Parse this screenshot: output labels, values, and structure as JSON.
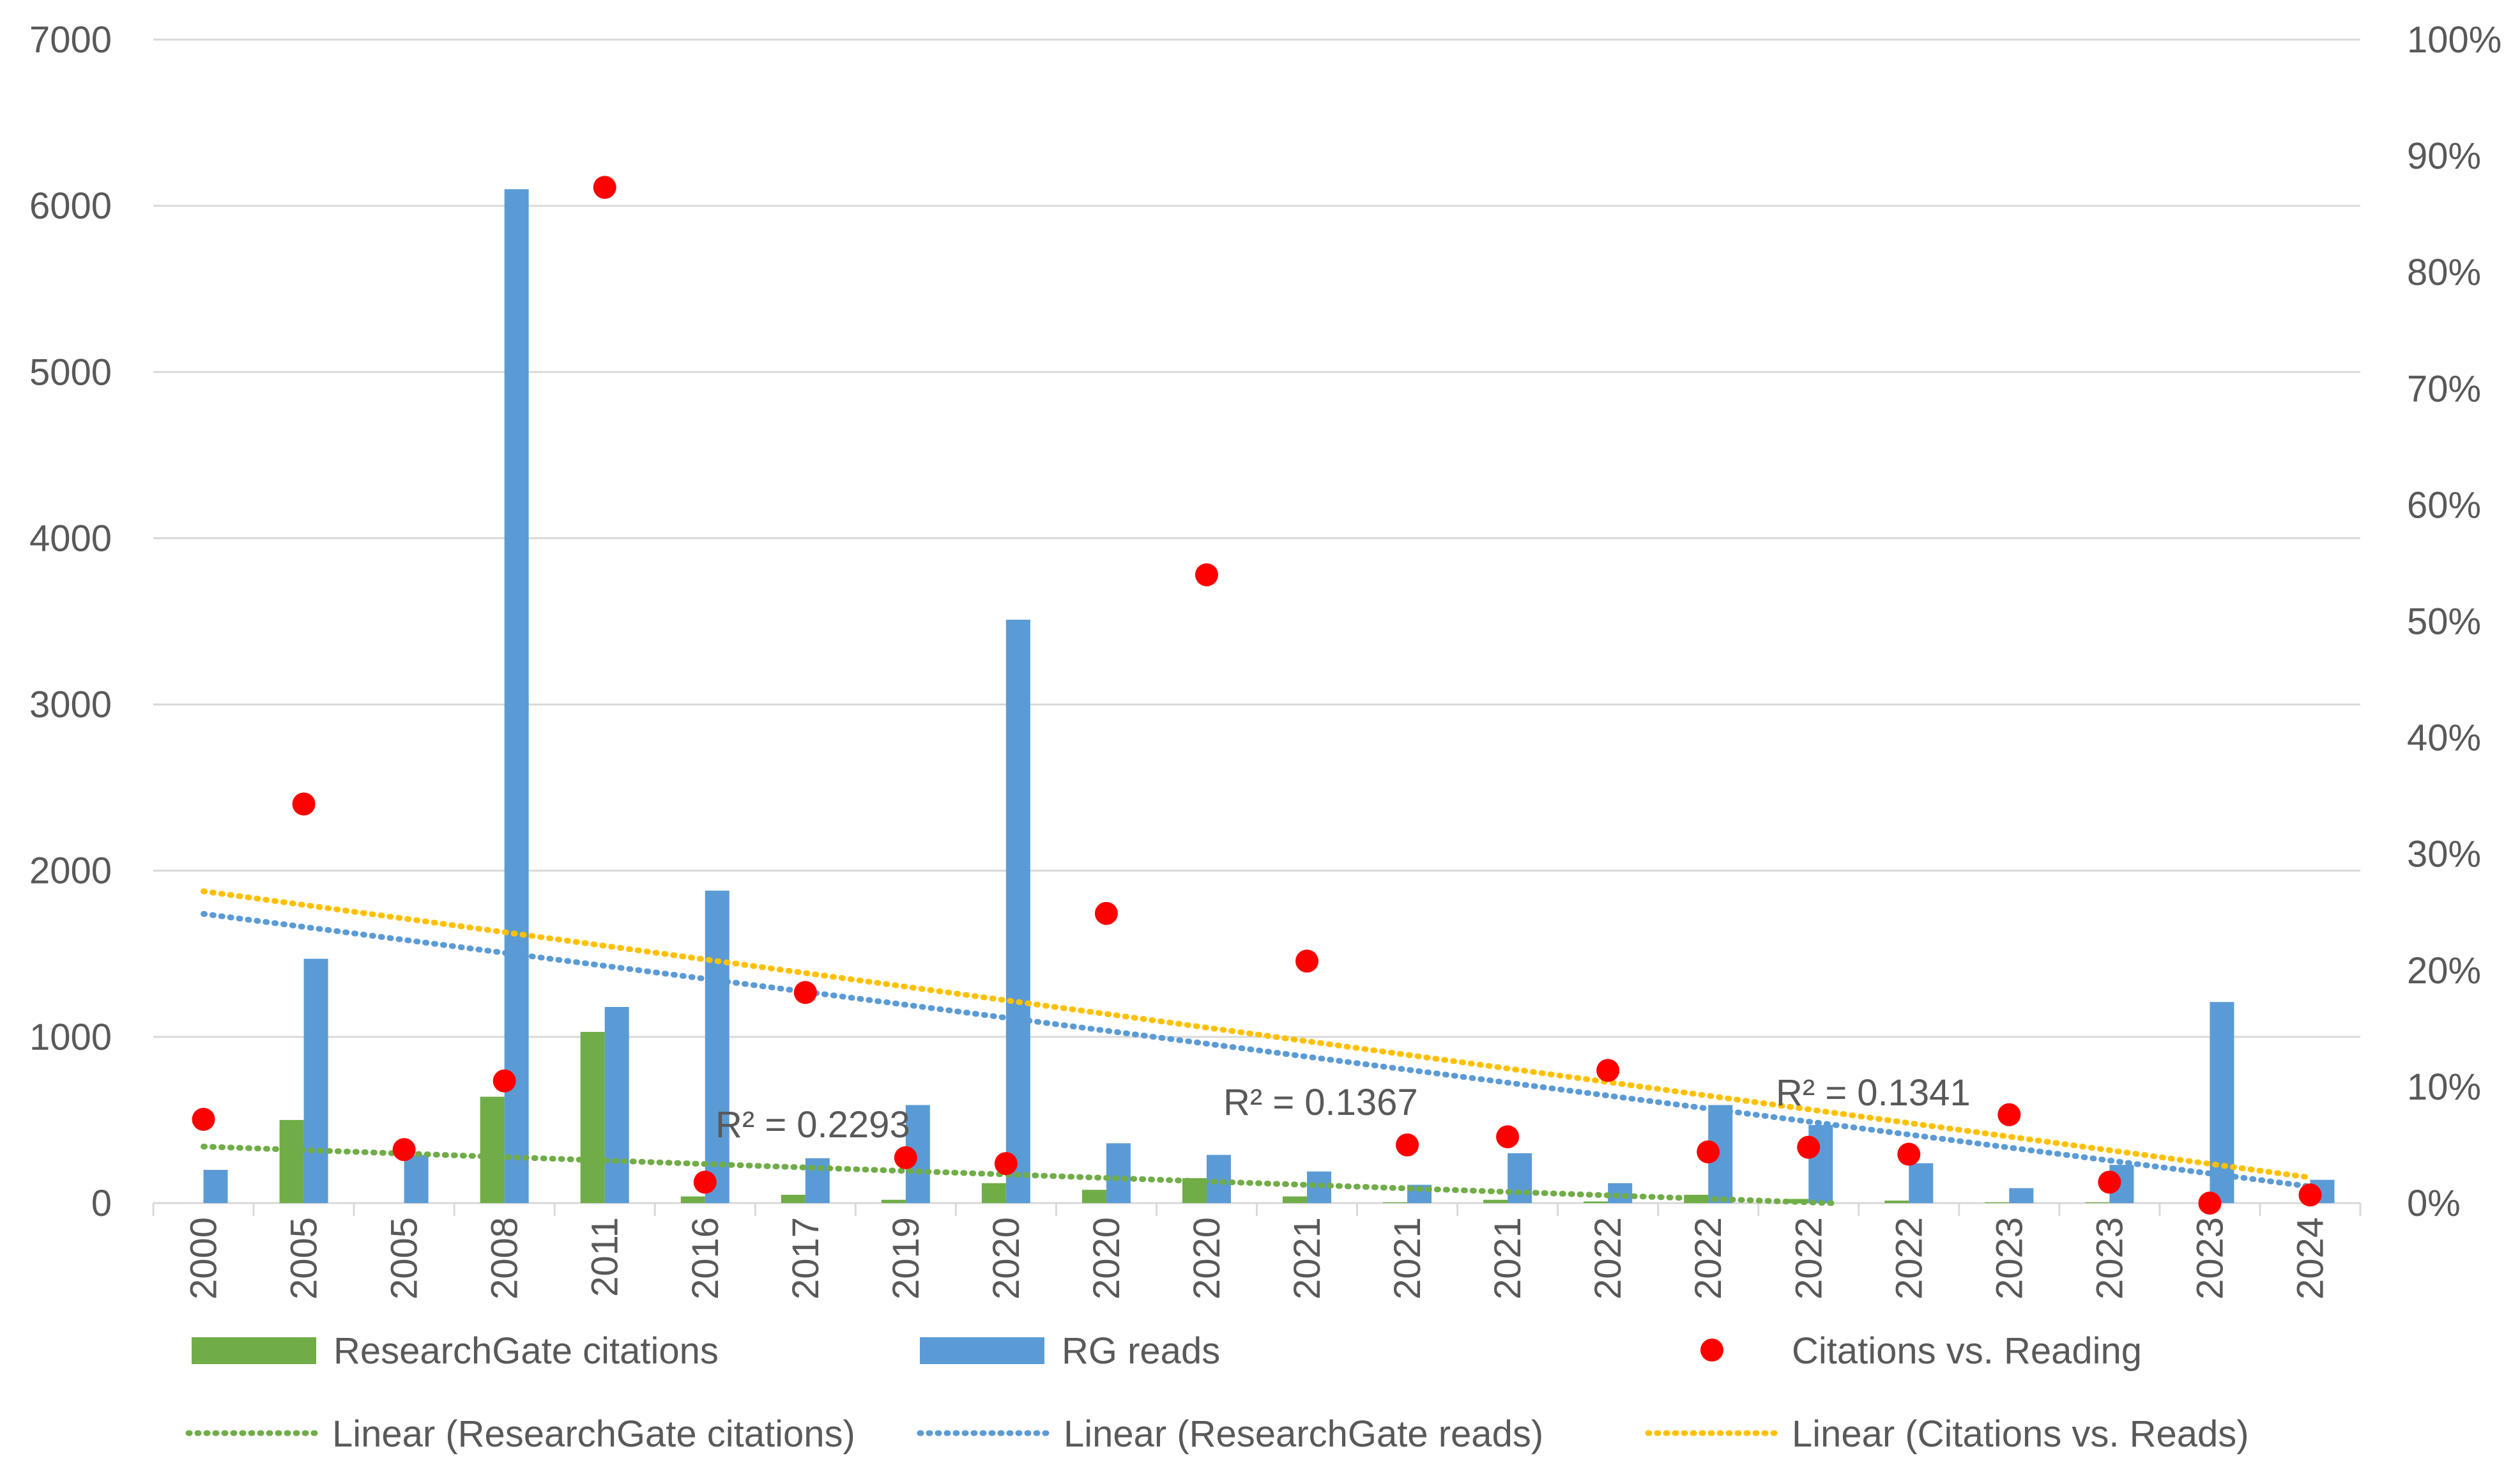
{
  "chart_data": {
    "type": "bar",
    "categories": [
      "2000",
      "2005",
      "2005",
      "2008",
      "2011",
      "2016",
      "2017",
      "2019",
      "2020",
      "2020",
      "2020",
      "2021",
      "2021",
      "2021",
      "2022",
      "2022",
      "2022",
      "2022",
      "2023",
      "2023",
      "2023",
      "2024"
    ],
    "series": [
      {
        "name": "ResearchGate citations",
        "type": "bar",
        "axis": "left",
        "color": "#70ad47",
        "values": [
          0,
          500,
          0,
          640,
          1030,
          40,
          50,
          20,
          120,
          80,
          150,
          40,
          5,
          20,
          10,
          50,
          25,
          15,
          5,
          5,
          0,
          0
        ]
      },
      {
        "name": "RG reads",
        "type": "bar",
        "axis": "left",
        "color": "#5b9bd5",
        "values": [
          200,
          1470,
          290,
          6100,
          1180,
          1880,
          270,
          590,
          3510,
          360,
          290,
          190,
          110,
          300,
          120,
          590,
          470,
          240,
          90,
          230,
          1210,
          140
        ]
      },
      {
        "name": "Citations vs. Reading",
        "type": "scatter",
        "axis": "right",
        "color": "#ff0000",
        "values": [
          7.2,
          34.3,
          4.6,
          10.5,
          87.3,
          1.8,
          18.1,
          3.9,
          3.4,
          24.9,
          54.0,
          20.8,
          5.0,
          5.7,
          11.4,
          4.4,
          4.8,
          4.2,
          7.6,
          1.8,
          0,
          0.7
        ]
      }
    ],
    "trendlines": [
      {
        "name": "Linear (ResearchGate citations)",
        "color": "#70ad47",
        "axis": "left",
        "start": 340,
        "end": -100,
        "r2_label": "R² = 0.2293"
      },
      {
        "name": "Linear (ResearchGate reads)",
        "color": "#5b9bd5",
        "axis": "left",
        "start": 1740,
        "end": 100,
        "r2_label": "R² = 0.1367"
      },
      {
        "name": "Linear (Citations vs. Reads)",
        "color": "#ffc000",
        "axis": "right",
        "start": 26.8,
        "end": 2.2,
        "r2_label": "R² = 0.1341"
      }
    ],
    "left_axis": {
      "min": 0,
      "max": 7000,
      "step": 1000,
      "ticks": [
        "0",
        "1000",
        "2000",
        "3000",
        "4000",
        "5000",
        "6000",
        "7000"
      ]
    },
    "right_axis": {
      "min": 0,
      "max": 100,
      "step": 10,
      "ticks": [
        "0%",
        "10%",
        "20%",
        "30%",
        "40%",
        "50%",
        "60%",
        "70%",
        "80%",
        "90%",
        "100%"
      ]
    },
    "legend": {
      "position": "bottom",
      "row1": [
        "ResearchGate citations",
        "RG reads",
        "Citations vs. Reading"
      ],
      "row2": [
        "Linear (ResearchGate citations)",
        "Linear (ResearchGate reads)",
        "Linear (Citations vs. Reads)"
      ]
    },
    "grid": true
  }
}
